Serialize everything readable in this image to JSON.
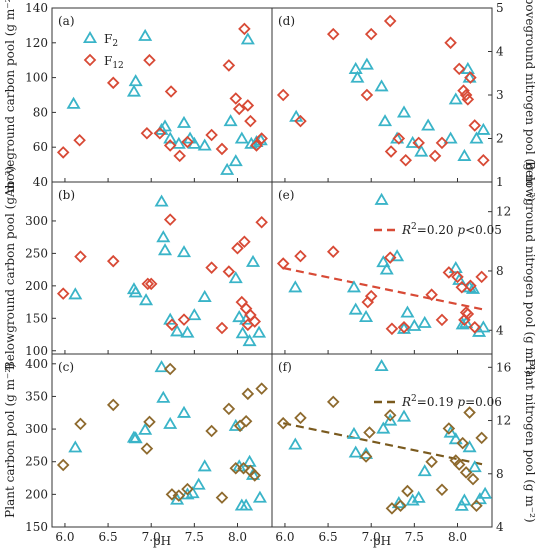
{
  "chart_data": {
    "type": "scatter",
    "legend": [
      {
        "name": "F2",
        "main": "F",
        "sub": "2",
        "marker": "triangle",
        "color": "#3ab4c8"
      },
      {
        "name": "F12",
        "main": "F",
        "sub": "12",
        "marker": "diamond",
        "color": "#d84a36"
      }
    ],
    "xlabel": "pH",
    "xlim": [
      5.85,
      8.4
    ],
    "xticks": [
      "6.0",
      "6.5",
      "7.0",
      "7.5",
      "8.0"
    ],
    "panels": [
      {
        "id": "a",
        "label": "(a)",
        "side": "left",
        "row": 0,
        "ylabel": "Aboveground carbon pool (g m⁻²)",
        "ylim": [
          40,
          140
        ],
        "yticks": [
          40,
          60,
          80,
          100,
          120,
          140
        ],
        "colors": {
          "F2": "#3ab4c8",
          "F12": "#d84a36"
        },
        "F2": [
          [
            6.1,
            85
          ],
          [
            6.8,
            92
          ],
          [
            6.82,
            98
          ],
          [
            6.93,
            124
          ],
          [
            7.12,
            70
          ],
          [
            7.16,
            72
          ],
          [
            7.22,
            65
          ],
          [
            7.32,
            62
          ],
          [
            7.38,
            74
          ],
          [
            7.45,
            65
          ],
          [
            7.5,
            62
          ],
          [
            7.62,
            61
          ],
          [
            7.88,
            47
          ],
          [
            7.92,
            75
          ],
          [
            7.98,
            52
          ],
          [
            8.05,
            65
          ],
          [
            8.12,
            122
          ],
          [
            8.16,
            62
          ],
          [
            8.22,
            63
          ],
          [
            8.27,
            64
          ]
        ],
        "F12": [
          [
            5.98,
            57
          ],
          [
            6.17,
            64
          ],
          [
            6.56,
            97
          ],
          [
            6.95,
            68
          ],
          [
            6.98,
            110
          ],
          [
            7.1,
            68
          ],
          [
            7.22,
            61
          ],
          [
            7.23,
            92
          ],
          [
            7.33,
            55
          ],
          [
            7.42,
            63
          ],
          [
            7.7,
            67
          ],
          [
            7.82,
            59
          ],
          [
            7.9,
            107
          ],
          [
            7.98,
            88
          ],
          [
            8.02,
            82
          ],
          [
            8.08,
            128
          ],
          [
            8.12,
            84
          ],
          [
            8.15,
            75
          ],
          [
            8.22,
            61
          ],
          [
            8.28,
            65
          ]
        ]
      },
      {
        "id": "d",
        "label": "(d)",
        "side": "right",
        "row": 0,
        "ylabel": "Aboveground nitrogen pool (g m⁻²)",
        "ylim": [
          1,
          5
        ],
        "yticks": [
          1,
          2,
          3,
          4,
          5
        ],
        "colors": {
          "F2": "#3ab4c8",
          "F12": "#d84a36"
        },
        "F2": [
          [
            6.13,
            2.5
          ],
          [
            6.82,
            3.6
          ],
          [
            6.84,
            3.4
          ],
          [
            6.95,
            3.7
          ],
          [
            7.12,
            3.2
          ],
          [
            7.16,
            2.4
          ],
          [
            7.3,
            2.0
          ],
          [
            7.38,
            2.6
          ],
          [
            7.48,
            1.9
          ],
          [
            7.58,
            1.7
          ],
          [
            7.66,
            2.3
          ],
          [
            7.92,
            2.0
          ],
          [
            7.98,
            2.9
          ],
          [
            8.08,
            1.6
          ],
          [
            8.12,
            3.6
          ],
          [
            8.14,
            3.4
          ],
          [
            8.22,
            2.0
          ],
          [
            8.3,
            2.2
          ]
        ],
        "F12": [
          [
            5.98,
            3.0
          ],
          [
            6.18,
            2.4
          ],
          [
            6.56,
            4.4
          ],
          [
            6.95,
            3.0
          ],
          [
            7.0,
            4.4
          ],
          [
            7.22,
            4.7
          ],
          [
            7.23,
            1.7
          ],
          [
            7.32,
            2.0
          ],
          [
            7.4,
            1.5
          ],
          [
            7.55,
            1.9
          ],
          [
            7.74,
            1.6
          ],
          [
            7.82,
            1.9
          ],
          [
            7.92,
            4.2
          ],
          [
            8.02,
            3.6
          ],
          [
            8.07,
            3.1
          ],
          [
            8.1,
            3.0
          ],
          [
            8.12,
            2.9
          ],
          [
            8.15,
            3.4
          ],
          [
            8.2,
            2.3
          ],
          [
            8.3,
            1.5
          ]
        ]
      },
      {
        "id": "b",
        "label": "(b)",
        "side": "left",
        "row": 1,
        "ylabel": "Belowground carbon pool (g m⁻²)",
        "ylim": [
          95,
          360
        ],
        "yticks": [
          100,
          150,
          200,
          250,
          300
        ],
        "colors": {
          "F2": "#3ab4c8",
          "F12": "#d84a36"
        },
        "F2": [
          [
            6.12,
            187
          ],
          [
            6.8,
            195
          ],
          [
            6.82,
            190
          ],
          [
            6.94,
            178
          ],
          [
            7.12,
            330
          ],
          [
            7.14,
            275
          ],
          [
            7.16,
            255
          ],
          [
            7.22,
            148
          ],
          [
            7.3,
            130
          ],
          [
            7.38,
            252
          ],
          [
            7.42,
            128
          ],
          [
            7.5,
            155
          ],
          [
            7.62,
            183
          ],
          [
            7.98,
            212
          ],
          [
            8.02,
            152
          ],
          [
            8.06,
            127
          ],
          [
            8.1,
            148
          ],
          [
            8.14,
            115
          ],
          [
            8.18,
            237
          ],
          [
            8.25,
            128
          ]
        ],
        "F12": [
          [
            5.98,
            188
          ],
          [
            6.18,
            245
          ],
          [
            6.56,
            238
          ],
          [
            6.96,
            203
          ],
          [
            7.0,
            203
          ],
          [
            7.22,
            302
          ],
          [
            7.24,
            140
          ],
          [
            7.38,
            148
          ],
          [
            7.7,
            228
          ],
          [
            7.82,
            135
          ],
          [
            7.9,
            222
          ],
          [
            8.0,
            258
          ],
          [
            8.05,
            175
          ],
          [
            8.08,
            268
          ],
          [
            8.1,
            165
          ],
          [
            8.12,
            140
          ],
          [
            8.15,
            155
          ],
          [
            8.2,
            145
          ],
          [
            8.28,
            298
          ]
        ]
      },
      {
        "id": "e",
        "label": "(e)",
        "side": "right",
        "row": 1,
        "ylabel": "Belowground nitrogen pool (g m⁻²)",
        "ylim": [
          2.4,
          14
        ],
        "yticks": [
          4,
          8,
          12
        ],
        "colors": {
          "F2": "#3ab4c8",
          "F12": "#d84a36"
        },
        "F2": [
          [
            6.12,
            6.9
          ],
          [
            6.8,
            6.9
          ],
          [
            6.82,
            5.4
          ],
          [
            6.94,
            4.9
          ],
          [
            7.12,
            12.8
          ],
          [
            7.14,
            8.6
          ],
          [
            7.18,
            8.1
          ],
          [
            7.3,
            9.0
          ],
          [
            7.38,
            4.1
          ],
          [
            7.42,
            5.2
          ],
          [
            7.5,
            4.3
          ],
          [
            7.62,
            4.5
          ],
          [
            7.98,
            8.2
          ],
          [
            8.02,
            7.4
          ],
          [
            8.06,
            4.4
          ],
          [
            8.1,
            4.5
          ],
          [
            8.14,
            6.9
          ],
          [
            8.18,
            6.8
          ],
          [
            8.25,
            3.9
          ],
          [
            8.3,
            4.2
          ]
        ],
        "F12": [
          [
            5.98,
            8.5
          ],
          [
            6.18,
            9.0
          ],
          [
            6.56,
            9.3
          ],
          [
            6.96,
            5.9
          ],
          [
            7.0,
            6.3
          ],
          [
            7.22,
            8.9
          ],
          [
            7.24,
            4.1
          ],
          [
            7.38,
            4.2
          ],
          [
            7.7,
            6.4
          ],
          [
            7.82,
            4.7
          ],
          [
            7.9,
            7.9
          ],
          [
            8.0,
            7.6
          ],
          [
            8.05,
            6.9
          ],
          [
            8.08,
            4.7
          ],
          [
            8.1,
            5.2
          ],
          [
            8.12,
            5.1
          ],
          [
            8.15,
            7.0
          ],
          [
            8.2,
            4.2
          ],
          [
            8.28,
            7.6
          ]
        ],
        "fit": {
          "x": [
            5.98,
            8.3
          ],
          "y": [
            8.2,
            5.4
          ],
          "color": "#d84a36",
          "label": "R",
          "sup": "2",
          "text": "=0.20 ",
          "p": "p",
          "ptext": "<0.05"
        }
      },
      {
        "id": "c",
        "label": "(c)",
        "side": "left",
        "row": 2,
        "ylabel": "Plant carbon pool (g m⁻²)",
        "ylim": [
          150,
          415
        ],
        "yticks": [
          150,
          200,
          250,
          300,
          350,
          400
        ],
        "colors": {
          "F2": "#3ab4c8",
          "F12": "#8e6a2e"
        },
        "F2": [
          [
            6.12,
            272
          ],
          [
            6.8,
            287
          ],
          [
            6.82,
            286
          ],
          [
            6.93,
            299
          ],
          [
            7.12,
            395
          ],
          [
            7.14,
            348
          ],
          [
            7.22,
            308
          ],
          [
            7.3,
            192
          ],
          [
            7.38,
            325
          ],
          [
            7.42,
            200
          ],
          [
            7.48,
            202
          ],
          [
            7.55,
            215
          ],
          [
            7.62,
            243
          ],
          [
            7.98,
            305
          ],
          [
            8.02,
            243
          ],
          [
            8.05,
            183
          ],
          [
            8.1,
            183
          ],
          [
            8.14,
            250
          ],
          [
            8.18,
            230
          ],
          [
            8.26,
            195
          ]
        ],
        "F12": [
          [
            5.98,
            245
          ],
          [
            6.18,
            308
          ],
          [
            6.56,
            337
          ],
          [
            6.95,
            270
          ],
          [
            6.98,
            311
          ],
          [
            7.22,
            392
          ],
          [
            7.24,
            200
          ],
          [
            7.32,
            198
          ],
          [
            7.42,
            208
          ],
          [
            7.7,
            297
          ],
          [
            7.82,
            195
          ],
          [
            7.9,
            331
          ],
          [
            7.98,
            240
          ],
          [
            8.03,
            305
          ],
          [
            8.07,
            240
          ],
          [
            8.1,
            312
          ],
          [
            8.12,
            354
          ],
          [
            8.15,
            236
          ],
          [
            8.2,
            229
          ],
          [
            8.28,
            362
          ]
        ]
      },
      {
        "id": "f",
        "label": "(f)",
        "side": "right",
        "row": 2,
        "ylabel": "Plant nitrogen pool (g m⁻²)",
        "ylim": [
          4,
          17
        ],
        "yticks": [
          4,
          8,
          12,
          16
        ],
        "colors": {
          "F2": "#3ab4c8",
          "F12": "#8e6a2e"
        },
        "F2": [
          [
            6.12,
            10.2
          ],
          [
            6.8,
            11.0
          ],
          [
            6.82,
            9.6
          ],
          [
            6.94,
            9.5
          ],
          [
            7.12,
            16.1
          ],
          [
            7.14,
            11.4
          ],
          [
            7.22,
            12.0
          ],
          [
            7.32,
            5.8
          ],
          [
            7.38,
            12.3
          ],
          [
            7.48,
            6.0
          ],
          [
            7.55,
            6.2
          ],
          [
            7.62,
            8.2
          ],
          [
            7.92,
            11.1
          ],
          [
            7.98,
            10.6
          ],
          [
            8.05,
            5.6
          ],
          [
            8.08,
            6.0
          ],
          [
            8.14,
            10.0
          ],
          [
            8.2,
            8.5
          ],
          [
            8.26,
            6.1
          ],
          [
            8.32,
            6.5
          ]
        ],
        "F12": [
          [
            5.98,
            11.8
          ],
          [
            6.18,
            12.2
          ],
          [
            6.56,
            13.4
          ],
          [
            6.94,
            9.3
          ],
          [
            6.98,
            11.1
          ],
          [
            7.22,
            12.4
          ],
          [
            7.24,
            5.4
          ],
          [
            7.34,
            5.6
          ],
          [
            7.42,
            6.7
          ],
          [
            7.7,
            8.9
          ],
          [
            7.82,
            6.8
          ],
          [
            7.9,
            11.4
          ],
          [
            7.98,
            9.0
          ],
          [
            8.02,
            8.7
          ],
          [
            8.06,
            10.3
          ],
          [
            8.1,
            8.1
          ],
          [
            8.14,
            12.6
          ],
          [
            8.18,
            7.6
          ],
          [
            8.22,
            5.6
          ],
          [
            8.28,
            10.7
          ]
        ],
        "fit": {
          "x": [
            5.98,
            8.3
          ],
          "y": [
            11.8,
            8.7
          ],
          "color": "#7a5a1e",
          "label": "R",
          "sup": "2",
          "text": "=0.19 ",
          "p": "p",
          "ptext": "=0.06"
        }
      }
    ]
  }
}
